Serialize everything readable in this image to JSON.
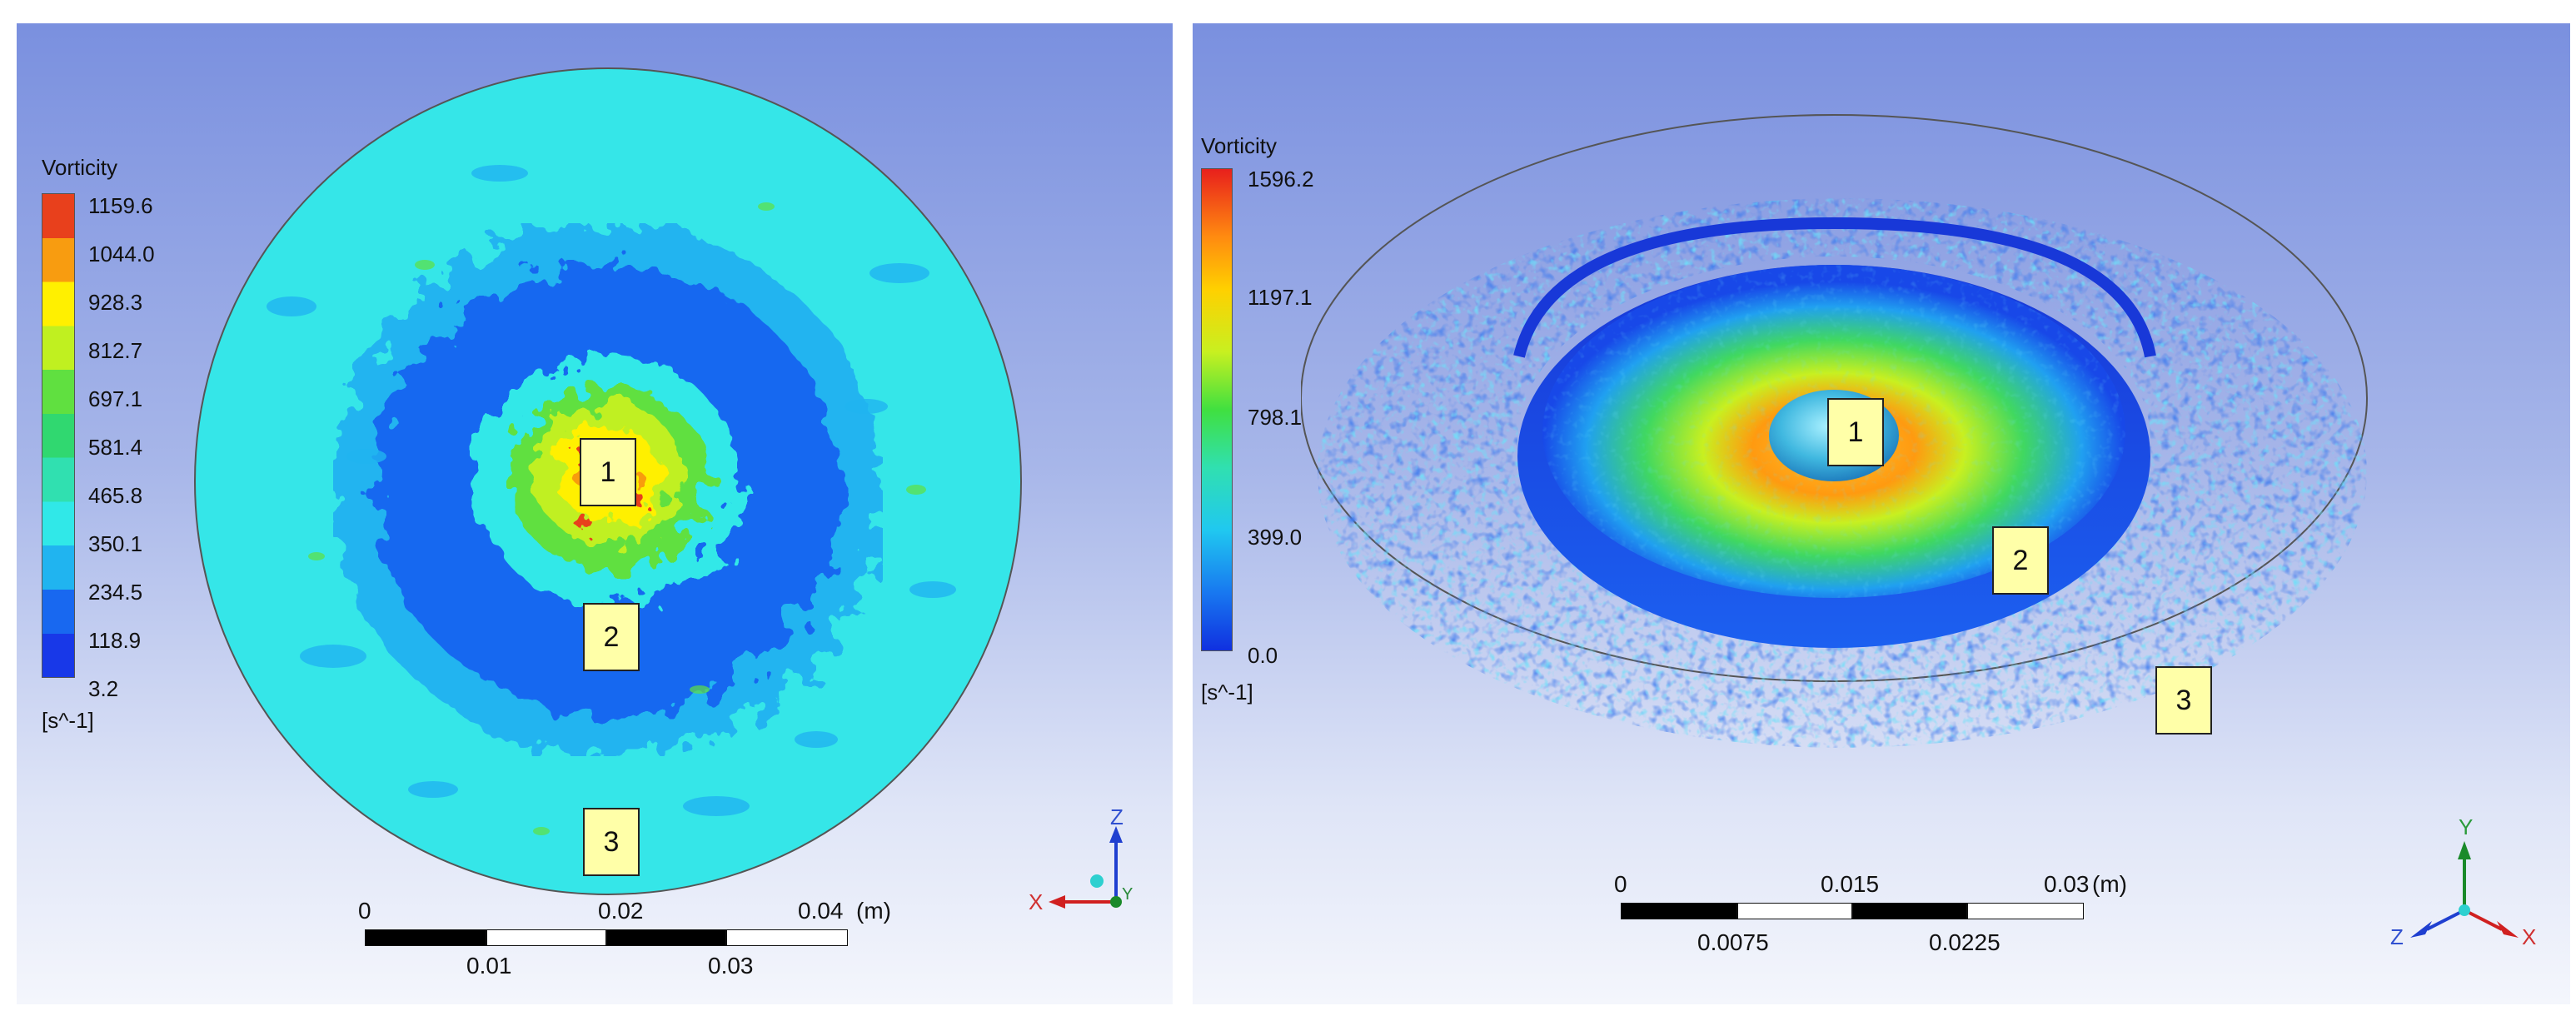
{
  "left_panel": {
    "legend": {
      "title": "Vorticity",
      "ticks": [
        "1159.6",
        "1044.0",
        "928.3",
        "812.7",
        "697.1",
        "581.4",
        "465.8",
        "350.1",
        "234.5",
        "118.9",
        "3.2"
      ],
      "unit": "[s^-1]",
      "colors": [
        "#e8401c",
        "#f89c10",
        "#fff000",
        "#c0f020",
        "#60e040",
        "#30d870",
        "#30e0b0",
        "#30e8e8",
        "#20b4f0",
        "#1868f0",
        "#1838e8"
      ]
    },
    "region_labels": [
      "1",
      "2",
      "3"
    ],
    "scale_bar": {
      "top_labels": [
        "0",
        "0.02",
        "0.04"
      ],
      "unit": "(m)",
      "bottom_labels": [
        "0.01",
        "0.03"
      ]
    },
    "axes": {
      "vertical": "Z",
      "horizontal": "X",
      "depth": "Y"
    }
  },
  "right_panel": {
    "legend": {
      "title": "Vorticity",
      "ticks": [
        "1596.2",
        "1197.1",
        "798.1",
        "399.0",
        "0.0"
      ],
      "unit": "[s^-1]",
      "colors": [
        "#e8201c",
        "#ffd000",
        "#40e040",
        "#20c8f0",
        "#1030e0"
      ]
    },
    "region_labels": [
      "1",
      "2",
      "3"
    ],
    "scale_bar": {
      "top_labels": [
        "0",
        "0.015",
        "0.03"
      ],
      "unit": "(m)",
      "bottom_labels": [
        "0.0075",
        "0.0225"
      ]
    },
    "axes": {
      "vertical": "Y",
      "horizontal": "X",
      "depth": "Z"
    }
  }
}
